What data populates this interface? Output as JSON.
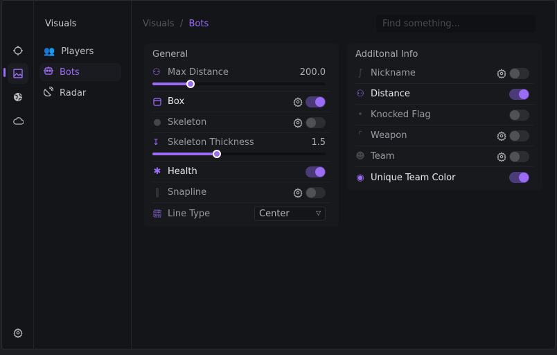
{
  "accent": "#9b6cf5",
  "rail": {
    "items": [
      {
        "icon": "crosshair-icon"
      },
      {
        "icon": "image-icon",
        "active": true
      },
      {
        "icon": "globe-icon"
      },
      {
        "icon": "cloud-icon"
      }
    ],
    "settings_icon": "gear-icon"
  },
  "nav": {
    "title": "Visuals",
    "items": [
      {
        "label": "Players",
        "icon": "users-icon"
      },
      {
        "label": "Bots",
        "icon": "robot-icon",
        "active": true
      },
      {
        "label": "Radar",
        "icon": "satellite-icon"
      }
    ]
  },
  "breadcrumb": {
    "parent": "Visuals",
    "sep": "/",
    "current": "Bots"
  },
  "search": {
    "placeholder": "Find something..."
  },
  "general": {
    "title": "General",
    "max_distance": {
      "label": "Max Distance",
      "value": "200.0",
      "percent": 22
    },
    "box": {
      "label": "Box",
      "on": true
    },
    "skeleton": {
      "label": "Skeleton",
      "on": false
    },
    "skeleton_thickness": {
      "label": "Skeleton Thickness",
      "value": "1.5",
      "percent": 37
    },
    "health": {
      "label": "Health",
      "on": true
    },
    "snapline": {
      "label": "Snapline",
      "on": false
    },
    "line_type": {
      "label": "Line Type",
      "value": "Center"
    }
  },
  "additional": {
    "title": "Additonal Info",
    "items": [
      {
        "label": "Nickname",
        "on": false,
        "gear": true
      },
      {
        "label": "Distance",
        "on": true,
        "gear": false
      },
      {
        "label": "Knocked Flag",
        "on": false,
        "gear": false
      },
      {
        "label": "Weapon",
        "on": false,
        "gear": true
      },
      {
        "label": "Team",
        "on": false,
        "gear": true
      },
      {
        "label": "Unique Team Color",
        "on": true,
        "gear": false
      }
    ]
  }
}
